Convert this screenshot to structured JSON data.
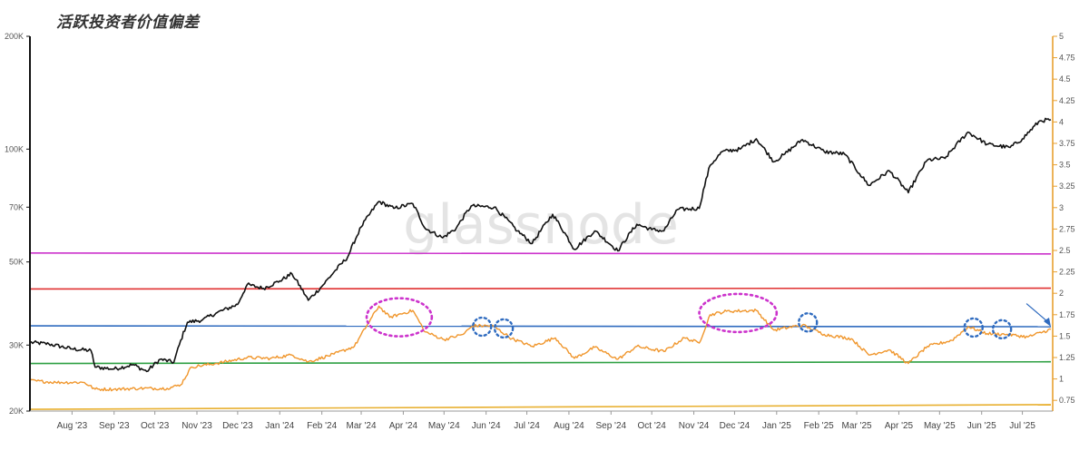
{
  "title": "活跃投资者价值偏差",
  "watermark": "glassnode",
  "chart_data": {
    "type": "line",
    "x_range": [
      "2023-07-01",
      "2025-07-22"
    ],
    "x_ticks": [
      "Aug '23",
      "Sep '23",
      "Oct '23",
      "Nov '23",
      "Dec '23",
      "Jan '24",
      "Feb '24",
      "Mar '24",
      "Apr '24",
      "May '24",
      "Jun '24",
      "Jul '24",
      "Aug '24",
      "Sep '24",
      "Oct '24",
      "Nov '24",
      "Dec '24",
      "Jan '25",
      "Feb '25",
      "Mar '25",
      "Apr '25",
      "May '25",
      "Jun '25",
      "Jul '25"
    ],
    "y_left": {
      "scale": "log",
      "range": [
        20000,
        200000
      ],
      "ticks": [
        {
          "value": 20000,
          "label": "20K"
        },
        {
          "value": 30000,
          "label": "30K"
        },
        {
          "value": 50000,
          "label": "50K"
        },
        {
          "value": 70000,
          "label": "70K"
        },
        {
          "value": 100000,
          "label": "100K"
        },
        {
          "value": 200000,
          "label": "200K"
        }
      ]
    },
    "y_right": {
      "scale": "linear",
      "range": [
        0.625,
        5
      ],
      "ticks": [
        "0.75",
        "1",
        "1.25",
        "1.5",
        "1.75",
        "2",
        "2.25",
        "2.5",
        "2.75",
        "3",
        "3.25",
        "3.5",
        "3.75",
        "4",
        "4.25",
        "4.5",
        "4.75",
        "5"
      ]
    },
    "series": [
      {
        "axis": "left",
        "color": "#111111",
        "points": [
          [
            "2023-07-01",
            30500
          ],
          [
            "2023-07-15",
            30200
          ],
          [
            "2023-08-01",
            29300
          ],
          [
            "2023-08-15",
            29000
          ],
          [
            "2023-08-18",
            26200
          ],
          [
            "2023-09-01",
            25900
          ],
          [
            "2023-09-15",
            26600
          ],
          [
            "2023-09-25",
            25500
          ],
          [
            "2023-10-05",
            27500
          ],
          [
            "2023-10-15",
            27000
          ],
          [
            "2023-10-25",
            34500
          ],
          [
            "2023-11-05",
            35000
          ],
          [
            "2023-11-15",
            36500
          ],
          [
            "2023-12-01",
            38500
          ],
          [
            "2023-12-08",
            43500
          ],
          [
            "2023-12-20",
            42500
          ],
          [
            "2024-01-01",
            44500
          ],
          [
            "2024-01-10",
            46500
          ],
          [
            "2024-01-22",
            39500
          ],
          [
            "2024-02-01",
            43000
          ],
          [
            "2024-02-10",
            47000
          ],
          [
            "2024-02-20",
            51500
          ],
          [
            "2024-03-01",
            62000
          ],
          [
            "2024-03-14",
            72500
          ],
          [
            "2024-03-25",
            69500
          ],
          [
            "2024-04-08",
            71500
          ],
          [
            "2024-04-17",
            61500
          ],
          [
            "2024-04-30",
            58000
          ],
          [
            "2024-05-10",
            61500
          ],
          [
            "2024-05-21",
            70500
          ],
          [
            "2024-06-07",
            70000
          ],
          [
            "2024-06-24",
            60500
          ],
          [
            "2024-07-05",
            56000
          ],
          [
            "2024-07-20",
            67000
          ],
          [
            "2024-08-05",
            54000
          ],
          [
            "2024-08-20",
            60500
          ],
          [
            "2024-09-06",
            53500
          ],
          [
            "2024-09-20",
            63000
          ],
          [
            "2024-10-01",
            61000
          ],
          [
            "2024-10-10",
            60500
          ],
          [
            "2024-10-20",
            69000
          ],
          [
            "2024-11-05",
            69500
          ],
          [
            "2024-11-13",
            90500
          ],
          [
            "2024-11-22",
            98500
          ],
          [
            "2024-12-05",
            100000
          ],
          [
            "2024-12-17",
            106500
          ],
          [
            "2024-12-30",
            92500
          ],
          [
            "2025-01-07",
            97000
          ],
          [
            "2025-01-20",
            106000
          ],
          [
            "2025-02-05",
            98500
          ],
          [
            "2025-02-20",
            97000
          ],
          [
            "2025-03-03",
            86000
          ],
          [
            "2025-03-10",
            80000
          ],
          [
            "2025-03-25",
            87500
          ],
          [
            "2025-04-08",
            76500
          ],
          [
            "2025-04-22",
            93500
          ],
          [
            "2025-05-05",
            94500
          ],
          [
            "2025-05-22",
            111000
          ],
          [
            "2025-06-05",
            103000
          ],
          [
            "2025-06-22",
            101000
          ],
          [
            "2025-07-01",
            106500
          ],
          [
            "2025-07-14",
            119000
          ],
          [
            "2025-07-22",
            119800
          ]
        ]
      },
      {
        "axis": "right",
        "color": "#f0962c",
        "points": [
          [
            "2023-07-01",
            0.98
          ],
          [
            "2023-07-20",
            0.96
          ],
          [
            "2023-08-10",
            0.96
          ],
          [
            "2023-08-18",
            0.88
          ],
          [
            "2023-09-01",
            0.88
          ],
          [
            "2023-09-20",
            0.89
          ],
          [
            "2023-10-10",
            0.89
          ],
          [
            "2023-10-20",
            0.93
          ],
          [
            "2023-10-28",
            1.14
          ],
          [
            "2023-11-15",
            1.18
          ],
          [
            "2023-12-08",
            1.25
          ],
          [
            "2023-12-25",
            1.24
          ],
          [
            "2024-01-10",
            1.28
          ],
          [
            "2024-01-22",
            1.2
          ],
          [
            "2024-02-10",
            1.29
          ],
          [
            "2024-02-25",
            1.38
          ],
          [
            "2024-03-05",
            1.62
          ],
          [
            "2024-03-14",
            1.85
          ],
          [
            "2024-03-22",
            1.72
          ],
          [
            "2024-04-08",
            1.8
          ],
          [
            "2024-04-17",
            1.55
          ],
          [
            "2024-05-01",
            1.46
          ],
          [
            "2024-05-15",
            1.52
          ],
          [
            "2024-05-22",
            1.62
          ],
          [
            "2024-06-06",
            1.62
          ],
          [
            "2024-06-20",
            1.47
          ],
          [
            "2024-07-05",
            1.38
          ],
          [
            "2024-07-22",
            1.48
          ],
          [
            "2024-08-05",
            1.24
          ],
          [
            "2024-08-20",
            1.37
          ],
          [
            "2024-09-06",
            1.23
          ],
          [
            "2024-09-20",
            1.38
          ],
          [
            "2024-10-10",
            1.32
          ],
          [
            "2024-10-25",
            1.48
          ],
          [
            "2024-11-05",
            1.42
          ],
          [
            "2024-11-13",
            1.75
          ],
          [
            "2024-11-25",
            1.79
          ],
          [
            "2024-12-17",
            1.8
          ],
          [
            "2024-12-30",
            1.57
          ],
          [
            "2025-01-20",
            1.63
          ],
          [
            "2025-02-05",
            1.52
          ],
          [
            "2025-02-25",
            1.47
          ],
          [
            "2025-03-10",
            1.28
          ],
          [
            "2025-03-25",
            1.34
          ],
          [
            "2025-04-08",
            1.18
          ],
          [
            "2025-04-22",
            1.38
          ],
          [
            "2025-05-10",
            1.45
          ],
          [
            "2025-05-22",
            1.61
          ],
          [
            "2025-06-05",
            1.53
          ],
          [
            "2025-06-20",
            1.52
          ],
          [
            "2025-07-05",
            1.49
          ],
          [
            "2025-07-22",
            1.58
          ]
        ]
      }
    ],
    "reference_lines": [
      {
        "axis": "right",
        "color": "#cc33cc",
        "y_start": 2.47,
        "y_end": 2.46
      },
      {
        "axis": "right",
        "color": "#e03030",
        "y_start": 2.05,
        "y_end": 2.06
      },
      {
        "axis": "right",
        "color": "#2f6bbf",
        "y_start": 1.62,
        "y_end": 1.61
      },
      {
        "axis": "right",
        "color": "#2ea043",
        "y_start": 1.18,
        "y_end": 1.2
      },
      {
        "axis": "right",
        "color": "#e8b030",
        "y_start": 0.645,
        "y_end": 0.7
      }
    ],
    "annotations": [
      {
        "type": "ellipse",
        "color": "#cc33cc",
        "x_start": "2024-03-05",
        "x_end": "2024-04-22",
        "y": 1.72
      },
      {
        "type": "ellipse",
        "color": "#cc33cc",
        "x_start": "2024-11-05",
        "x_end": "2025-01-01",
        "y": 1.77
      },
      {
        "type": "circle",
        "color": "#2f6bbf",
        "x": "2024-05-29",
        "y": 1.61
      },
      {
        "type": "circle",
        "color": "#2f6bbf",
        "x": "2024-06-14",
        "y": 1.59
      },
      {
        "type": "circle",
        "color": "#2f6bbf",
        "x": "2025-01-24",
        "y": 1.66
      },
      {
        "type": "circle",
        "color": "#2f6bbf",
        "x": "2025-05-26",
        "y": 1.6
      },
      {
        "type": "circle",
        "color": "#2f6bbf",
        "x": "2025-06-16",
        "y": 1.58
      },
      {
        "type": "arrow",
        "color": "#2f6bbf",
        "x_from": "2025-07-04",
        "y_from": 1.88,
        "x_to": "2025-07-22",
        "y_to": 1.61
      }
    ]
  }
}
